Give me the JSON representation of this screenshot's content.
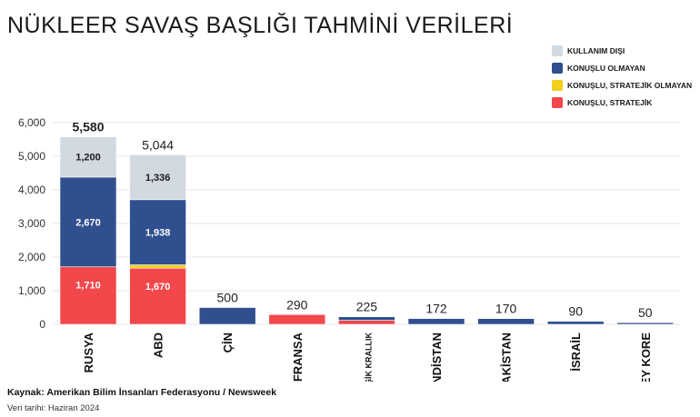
{
  "title": "NÜKLEER SAVAŞ BAŞLIĞI TAHMİNİ VERİLERİ",
  "source": "Kaynak: Amerikan Bilim İnsanları Federasyonu / Newsweek",
  "date_note": "Veri tarihi: Haziran 2024",
  "legend": [
    {
      "label": "KULLANIM DIŞI",
      "color": "#d3d9e1"
    },
    {
      "label": "KONUŞLU OLMAYAN",
      "color": "#2f4f8f"
    },
    {
      "label": "KONUŞLU, STRATEJİK OLMAYAN",
      "color": "#f3cf1b"
    },
    {
      "label": "KONUŞLU, STRATEJİK",
      "color": "#f2474b"
    }
  ],
  "chart_data": {
    "type": "bar",
    "stacked": true,
    "categories": [
      "RUSYA",
      "ABD",
      "ÇİN",
      "FRANSA",
      "BİRLEŞİK KRALLIK",
      "HİNDİSTAN",
      "PAKİSTAN",
      "İSRAİL",
      "KUZEY KORE"
    ],
    "series": [
      {
        "name": "KONUŞLU, STRATEJİK",
        "color": "#f2474b",
        "values": [
          1710,
          1670,
          0,
          290,
          120,
          0,
          0,
          0,
          0
        ],
        "labels": [
          "1,710",
          "1,670",
          "",
          "",
          "",
          "",
          "",
          "",
          ""
        ]
      },
      {
        "name": "KONUŞLU, STRATEJİK OLMAYAN",
        "color": "#f3cf1b",
        "values": [
          0,
          100,
          0,
          0,
          0,
          0,
          0,
          0,
          0
        ],
        "labels": [
          "",
          "",
          "",
          "",
          "",
          "",
          "",
          "",
          ""
        ]
      },
      {
        "name": "KONUŞLU OLMAYAN",
        "color": "#2f4f8f",
        "values": [
          2670,
          1938,
          500,
          0,
          105,
          172,
          170,
          90,
          50
        ],
        "labels": [
          "2,670",
          "1,938",
          "",
          "",
          "",
          "",
          "",
          "",
          ""
        ]
      },
      {
        "name": "KULLANIM DIŞI",
        "color": "#d3d9e1",
        "values": [
          1200,
          1336,
          0,
          0,
          0,
          0,
          0,
          0,
          0
        ],
        "labels": [
          "1,200",
          "1,336",
          "",
          "",
          "",
          "",
          "",
          "",
          ""
        ]
      }
    ],
    "totals": [
      "5,580",
      "5,044",
      "500",
      "290",
      "225",
      "172",
      "170",
      "90",
      "50"
    ],
    "yticks": [
      "0",
      "1,000",
      "2,000",
      "3,000",
      "4,000",
      "5,000",
      "6,000"
    ],
    "ylim": [
      0,
      6000
    ],
    "grid": true,
    "legend_position": "top-right"
  }
}
